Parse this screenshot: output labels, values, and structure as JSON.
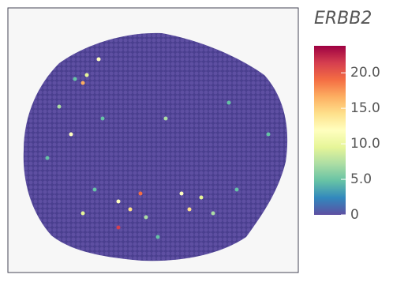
{
  "chart_data": {
    "type": "colorbar",
    "title": "ERBB2",
    "colormap": [
      "#5e4fa2",
      "#3288bd",
      "#66c2a5",
      "#abdda4",
      "#e6f598",
      "#ffffbf",
      "#fee08b",
      "#fdae61",
      "#f46d43",
      "#d53e4f",
      "#9e0142"
    ],
    "ylim": [
      0,
      23.8
    ],
    "yticks": [
      0,
      {
        "value": 5,
        "label": "5.0"
      },
      {
        "value": 10,
        "label": "10.0"
      },
      {
        "value": 15,
        "label": "15.0"
      },
      {
        "value": 20,
        "label": "20.0"
      }
    ]
  }
}
